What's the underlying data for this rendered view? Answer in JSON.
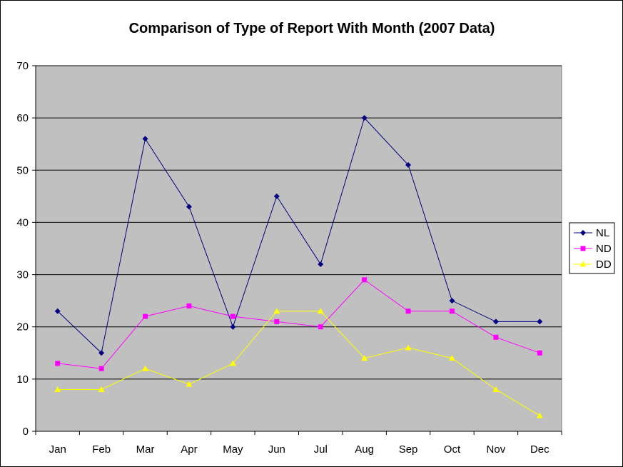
{
  "chart_data": {
    "type": "line",
    "title": "Comparison of Type of Report With Month (2007 Data)",
    "xlabel": "",
    "ylabel": "",
    "categories": [
      "Jan",
      "Feb",
      "Mar",
      "Apr",
      "May",
      "Jun",
      "Jul",
      "Aug",
      "Sep",
      "Oct",
      "Nov",
      "Dec"
    ],
    "ylim": [
      0,
      70
    ],
    "yticks": [
      0,
      10,
      20,
      30,
      40,
      50,
      60,
      70
    ],
    "grid": true,
    "legend_position": "right",
    "plot_background": "#C0C0C0",
    "series": [
      {
        "name": "NL",
        "color": "#000080",
        "marker": "diamond",
        "values": [
          23,
          15,
          56,
          43,
          20,
          45,
          32,
          60,
          51,
          25,
          21,
          21
        ]
      },
      {
        "name": "ND",
        "color": "#FF00FF",
        "marker": "square",
        "values": [
          13,
          12,
          22,
          24,
          22,
          21,
          20,
          29,
          23,
          23,
          18,
          15
        ]
      },
      {
        "name": "DD",
        "color": "#FFFF00",
        "marker": "triangle",
        "values": [
          8,
          8,
          12,
          9,
          13,
          23,
          23,
          14,
          16,
          14,
          8,
          3
        ]
      }
    ]
  }
}
